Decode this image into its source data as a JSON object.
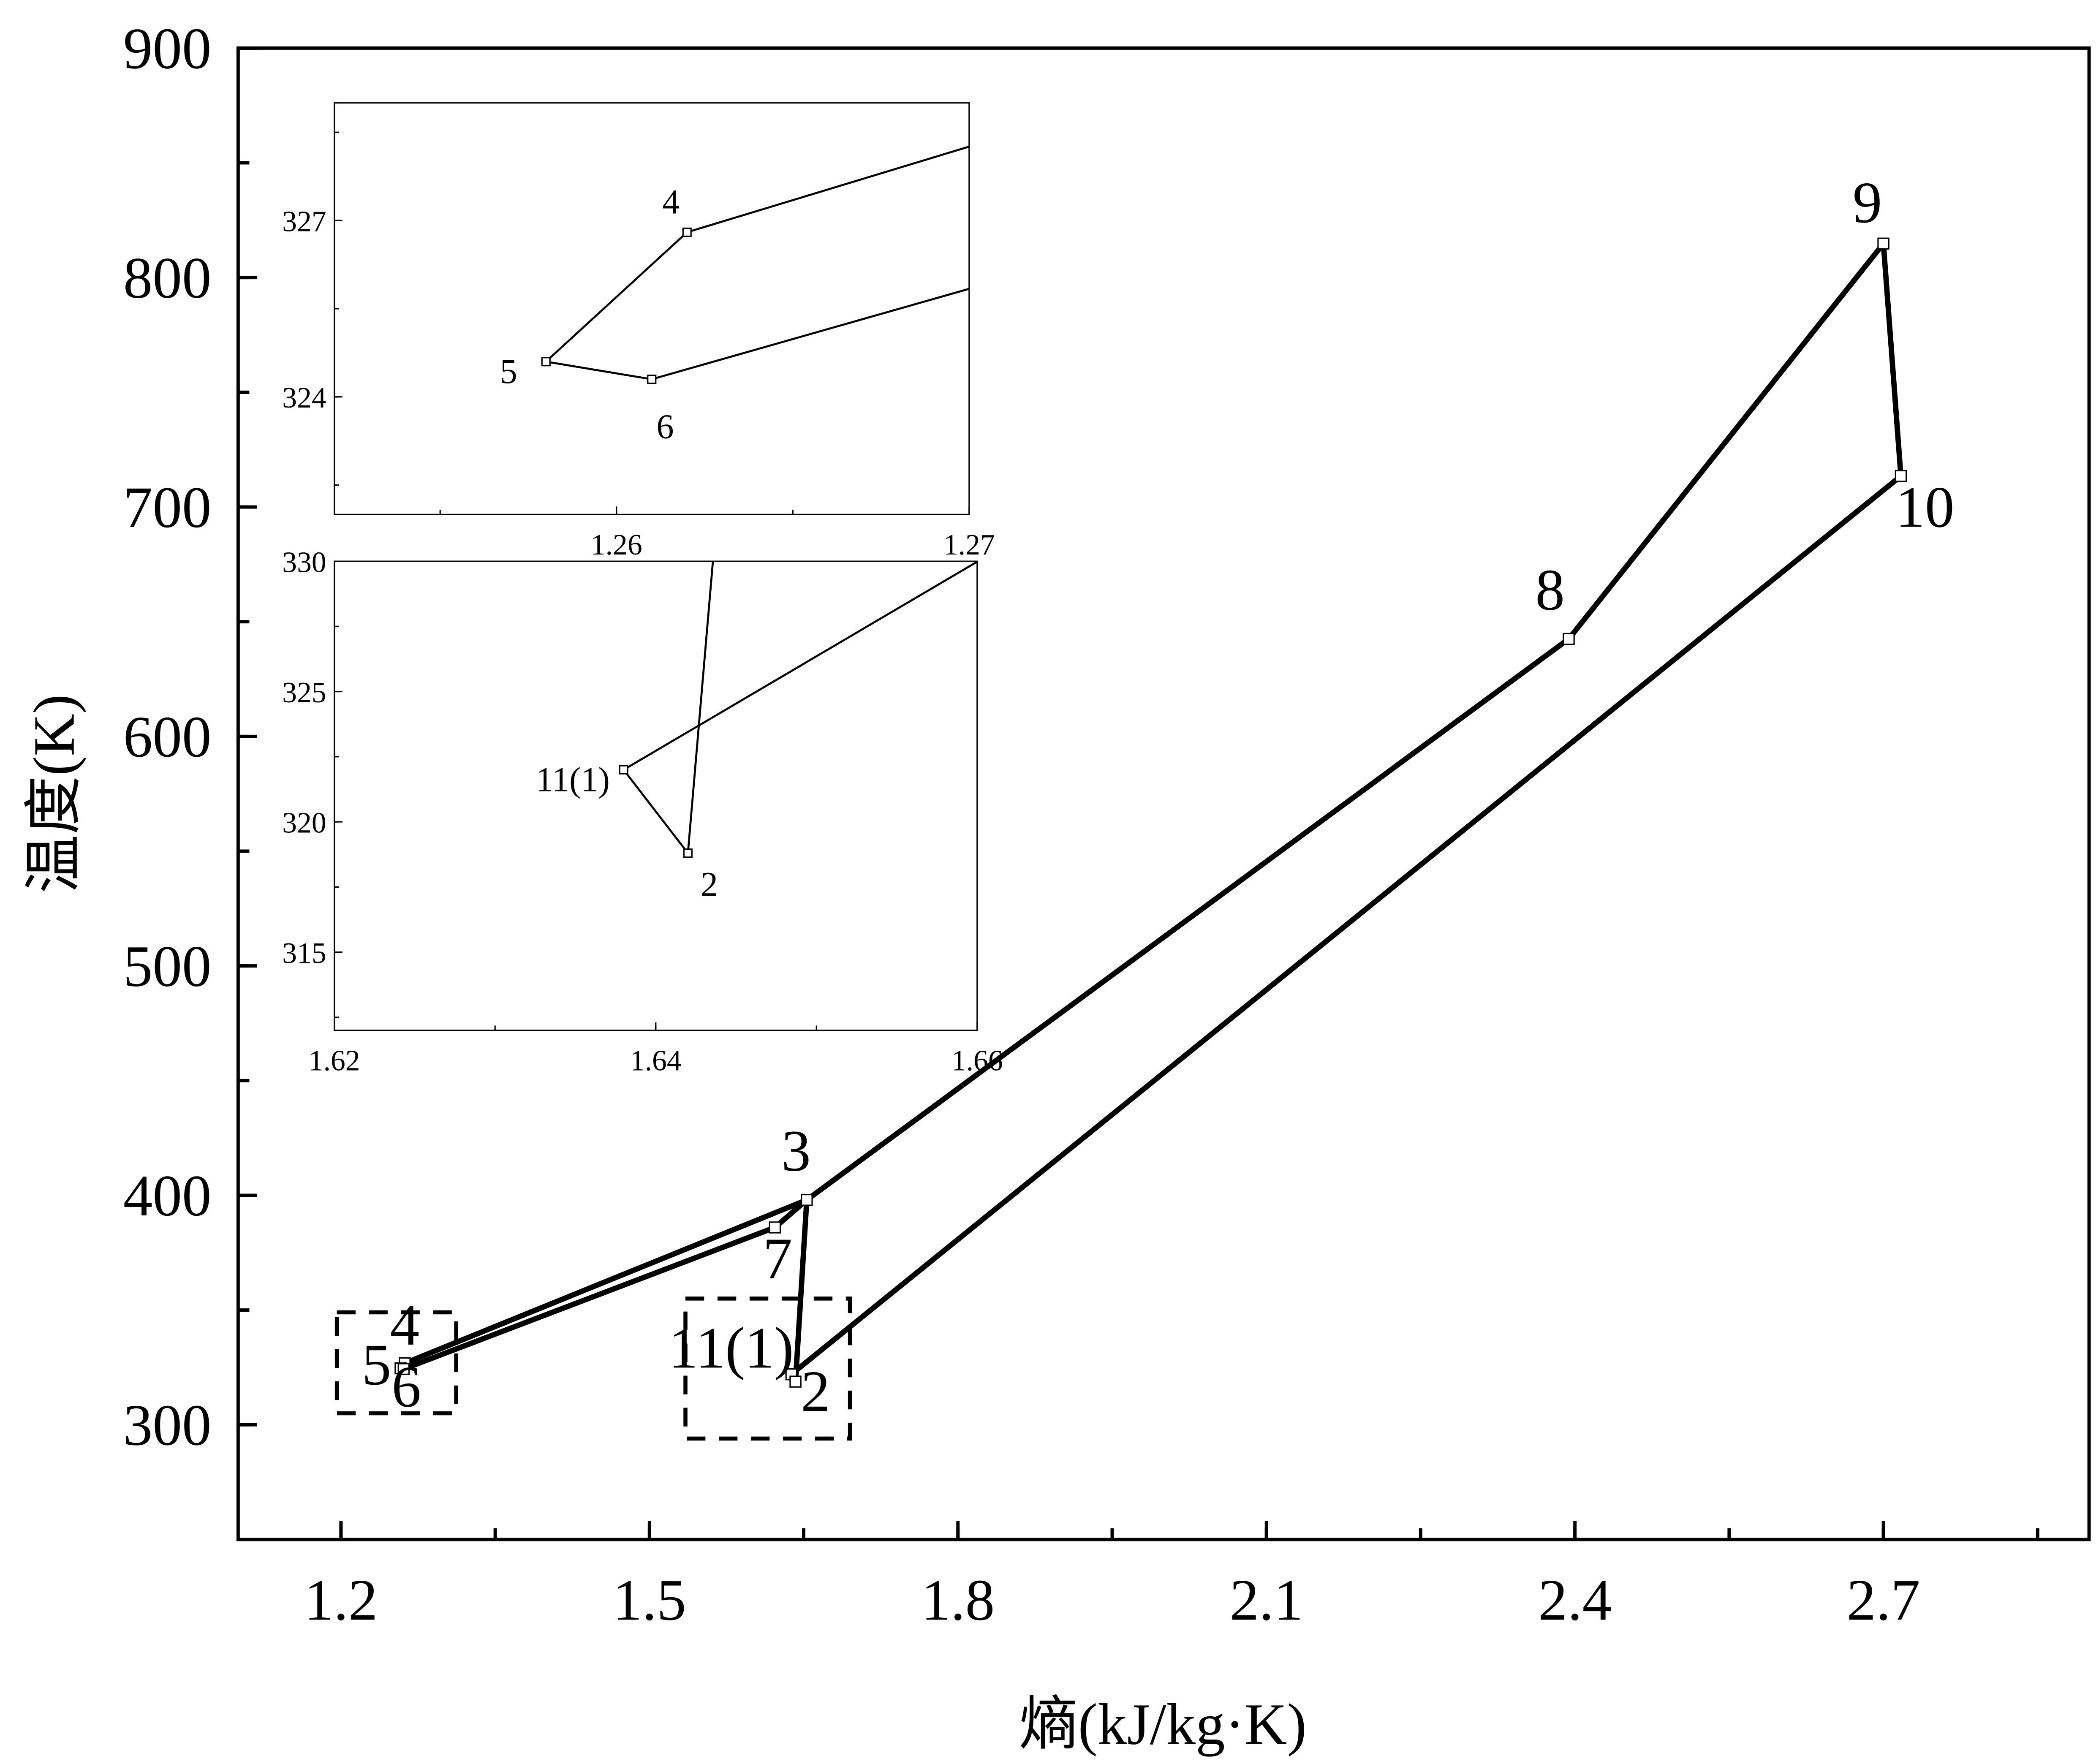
{
  "chart_data": [
    {
      "type": "line",
      "role": "main",
      "xlabel": "熵(kJ/kg·K)",
      "ylabel": "温度(K)",
      "xlim": [
        1.1,
        2.9
      ],
      "ylim": [
        250,
        900
      ],
      "xticks": [
        "1.2",
        "1.5",
        "1.8",
        "2.1",
        "2.4",
        "2.7"
      ],
      "yticks": [
        "300",
        "400",
        "500",
        "600",
        "700",
        "800",
        "900"
      ],
      "grid": false,
      "points": [
        {
          "label": "11(1)",
          "x": 1.638,
          "y": 322.0
        },
        {
          "label": "2",
          "x": 1.642,
          "y": 318.8
        },
        {
          "label": "3",
          "x": 1.653,
          "y": 398
        },
        {
          "label": "4",
          "x": 1.262,
          "y": 326.8
        },
        {
          "label": "5",
          "x": 1.258,
          "y": 324.6
        },
        {
          "label": "6",
          "x": 1.261,
          "y": 324.3
        },
        {
          "label": "7",
          "x": 1.622,
          "y": 386
        },
        {
          "label": "8",
          "x": 2.394,
          "y": 642.5
        },
        {
          "label": "9",
          "x": 2.7,
          "y": 814.8
        },
        {
          "label": "10",
          "x": 2.717,
          "y": 713.5
        }
      ],
      "path_order": [
        "11(1)",
        "2",
        "3",
        "4",
        "5",
        "6",
        "7",
        "3",
        "8",
        "9",
        "10",
        "11(1)"
      ],
      "zoom_boxes": [
        {
          "xlim": [
            1.196,
            1.312
          ],
          "ylim": [
            305,
            349
          ]
        },
        {
          "xlim": [
            1.535,
            1.695
          ],
          "ylim": [
            294,
            355
          ]
        }
      ]
    },
    {
      "type": "line",
      "role": "inset-top",
      "xlim": [
        1.252,
        1.27
      ],
      "ylim": [
        322,
        329
      ],
      "xticks": [
        "1.26",
        "1.27"
      ],
      "yticks": [
        "324",
        "327"
      ],
      "shown_labels": [
        "4",
        "5",
        "6"
      ]
    },
    {
      "type": "line",
      "role": "inset-bottom",
      "xlim": [
        1.62,
        1.66
      ],
      "ylim": [
        312,
        330
      ],
      "xticks": [
        "1.62",
        "1.64",
        "1.66"
      ],
      "yticks": [
        "315",
        "320",
        "325",
        "330"
      ],
      "shown_labels": [
        "11(1)",
        "2"
      ]
    }
  ]
}
